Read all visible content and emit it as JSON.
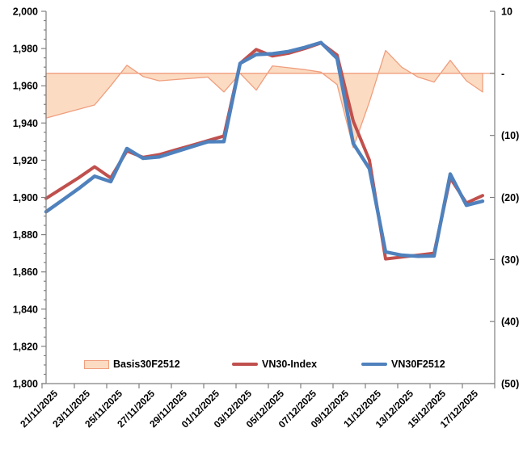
{
  "chart_data": {
    "type": "line",
    "subtype": "dual-axis combo: area series on secondary axis + two line series on primary axis",
    "title": "",
    "x": [
      "21/11/2025",
      "22/11/2025",
      "23/11/2025",
      "24/11/2025",
      "25/11/2025",
      "26/11/2025",
      "27/11/2025",
      "28/11/2025",
      "29/11/2025",
      "30/11/2025",
      "01/12/2025",
      "02/12/2025",
      "03/12/2025",
      "04/12/2025",
      "05/12/2025",
      "06/12/2025",
      "07/12/2025",
      "08/12/2025",
      "09/12/2025",
      "10/12/2025",
      "11/12/2025",
      "12/12/2025",
      "13/12/2025",
      "14/12/2025",
      "15/12/2025",
      "16/12/2025",
      "17/12/2025",
      "18/12/2025"
    ],
    "x_tick_labels": [
      "21/11/2025",
      "23/11/2025",
      "25/11/2025",
      "27/11/2025",
      "29/11/2025",
      "01/12/2025",
      "03/12/2025",
      "05/12/2025",
      "07/12/2025",
      "09/12/2025",
      "11/12/2025",
      "13/12/2025",
      "15/12/2025",
      "17/12/2025"
    ],
    "series": [
      {
        "name": "Basis30F2512",
        "type": "area",
        "axis": "right",
        "fill": "#FBDCC2",
        "stroke": "#F09E7E",
        "values": [
          -7.2,
          -6.5,
          -5.8,
          -5.1,
          -2.0,
          1.3,
          -0.5,
          -1.2,
          -1.0,
          -0.8,
          -0.6,
          -3.0,
          0.0,
          -2.7,
          1.2,
          0.9,
          0.6,
          0.2,
          -1.8,
          -12.0,
          -4.6,
          3.7,
          1.0,
          -0.6,
          -1.4,
          2.1,
          -1.2,
          -3.0
        ]
      },
      {
        "name": "VN30-Index",
        "type": "line",
        "axis": "left",
        "color": "#C0504D",
        "values": [
          1899.5,
          1905,
          1910.5,
          1916.5,
          1910.5,
          1925,
          1921.5,
          1923,
          1925.5,
          1928,
          1930.5,
          1933,
          1972,
          1979.5,
          1976,
          1977.5,
          1980,
          1983,
          1976.5,
          1941,
          1920,
          1867,
          1868,
          1869,
          1870,
          1910.5,
          1897,
          1901
        ]
      },
      {
        "name": "VN30F2512",
        "type": "line",
        "axis": "left",
        "color": "#4F81BD",
        "values": [
          1892.3,
          1898.5,
          1904.7,
          1911.4,
          1908.5,
          1926.3,
          1921.0,
          1921.8,
          1924.5,
          1927.2,
          1929.9,
          1930.0,
          1972.0,
          1976.8,
          1977.2,
          1978.4,
          1980.6,
          1983.2,
          1974.7,
          1929.0,
          1915.4,
          1870.7,
          1869.0,
          1868.4,
          1868.6,
          1912.6,
          1895.8,
          1898.0
        ]
      }
    ],
    "left_axis": {
      "min": 1800,
      "max": 2000,
      "major_step": 20,
      "minor_step": 5,
      "labels": [
        "2,000",
        "1,980",
        "1,960",
        "1,940",
        "1,920",
        "1,900",
        "1,880",
        "1,860",
        "1,840",
        "1,820",
        "1,800"
      ]
    },
    "right_axis": {
      "min": -50,
      "max": 10,
      "major_step": 10,
      "labels": [
        "10",
        "-",
        "(10)",
        "(20)",
        "(30)",
        "(40)",
        "(50)"
      ],
      "label_values": [
        10,
        0,
        -10,
        -20,
        -30,
        -40,
        -50
      ]
    },
    "legend": {
      "position": "bottom-inside",
      "items": [
        {
          "label": "Basis30F2512",
          "swatch": "area"
        },
        {
          "label": "VN30-Index",
          "swatch": "line"
        },
        {
          "label": "VN30F2512",
          "swatch": "line"
        }
      ]
    },
    "grid": false,
    "axis_line_color": "#808080"
  }
}
